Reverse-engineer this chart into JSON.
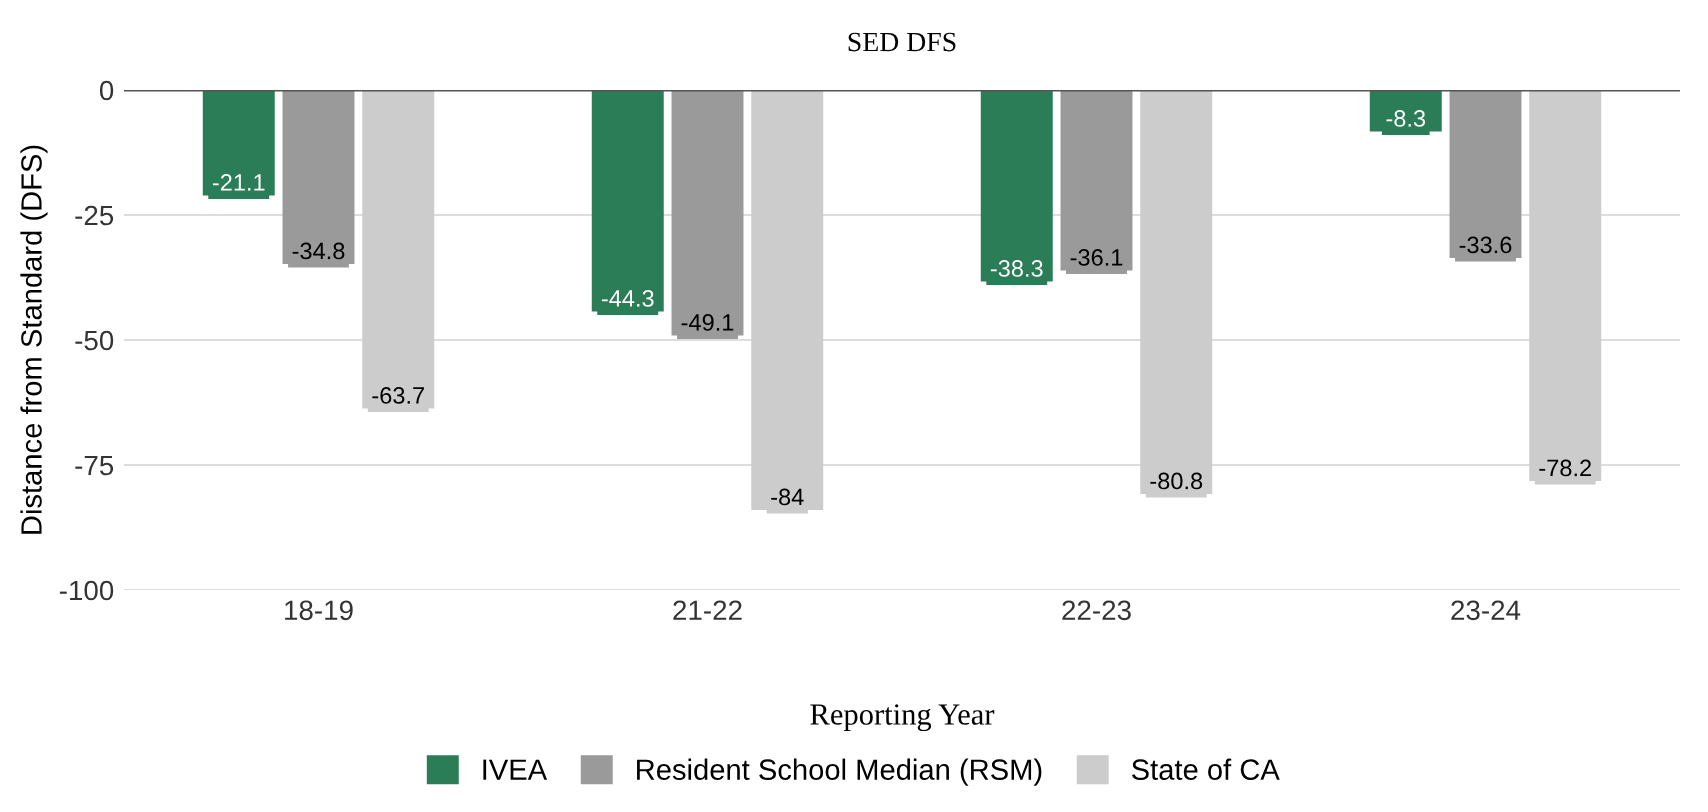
{
  "chart_data": {
    "type": "bar",
    "title": "SED DFS",
    "xlabel": "Reporting Year",
    "ylabel": "Distance from Standard (DFS)",
    "categories": [
      "18-19",
      "21-22",
      "22-23",
      "23-24"
    ],
    "series": [
      {
        "name": "IVEA",
        "color": "#2b7d58",
        "values": [
          -21.1,
          -44.3,
          -38.3,
          -8.3
        ]
      },
      {
        "name": "Resident School Median (RSM)",
        "color": "#9a9a9a",
        "values": [
          -34.8,
          -49.1,
          -36.1,
          -33.6
        ]
      },
      {
        "name": "State of CA",
        "color": "#cccccc",
        "values": [
          -63.7,
          -84,
          -80.8,
          -78.2
        ]
      }
    ],
    "ylim": [
      -100,
      0
    ],
    "yticks": [
      -100,
      -75,
      -50,
      -25,
      0
    ],
    "grid": "y",
    "legend": "bottom",
    "data_labels": true
  }
}
